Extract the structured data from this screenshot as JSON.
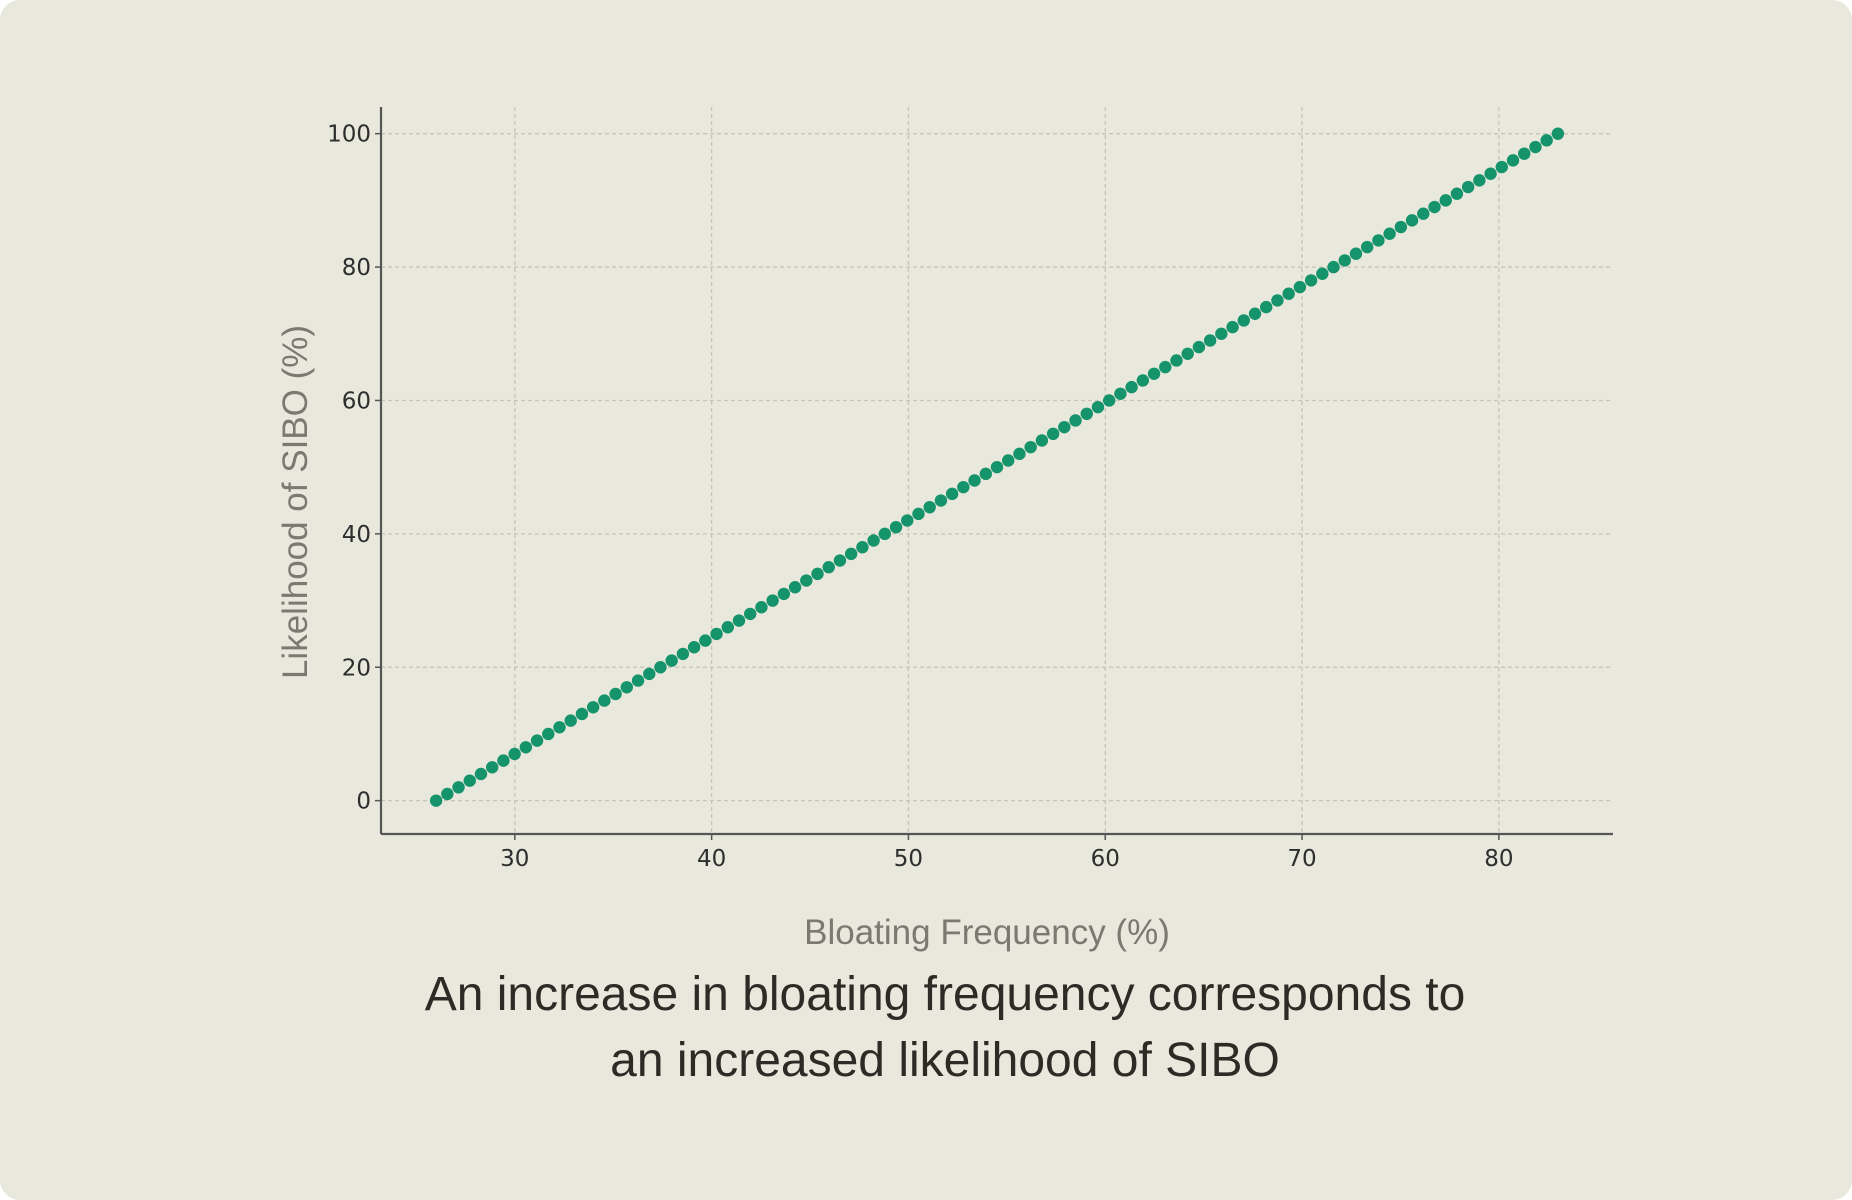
{
  "caption": {
    "line1": "An increase in bloating frequency corresponds to",
    "line2": "an increased likelihood of SIBO"
  },
  "colors": {
    "background": "#e8e8dc",
    "marker": "#15936b",
    "grid": "#c4c4b8",
    "axis": "#555555"
  },
  "chart_data": {
    "type": "scatter",
    "title": "",
    "xlabel": "Bloating Frequency (%)",
    "ylabel": "Likelihood of SIBO (%)",
    "xlim": [
      23.2,
      85.8
    ],
    "ylim": [
      -5,
      104
    ],
    "xticks": [
      30,
      40,
      50,
      60,
      70,
      80
    ],
    "yticks": [
      0,
      20,
      40,
      60,
      80,
      100
    ],
    "xtick_labels": [
      "30",
      "40",
      "50",
      "60",
      "70",
      "80"
    ],
    "ytick_labels": [
      "0",
      "20",
      "40",
      "60",
      "80",
      "100"
    ],
    "grid": true,
    "legend": "none",
    "series": [
      {
        "marker": "circle",
        "color": "#15936b",
        "x": [
          26,
          26.57,
          27.14,
          27.71,
          28.28,
          28.85,
          29.42,
          29.99,
          30.56,
          31.13,
          31.7,
          32.27,
          32.84,
          33.41,
          33.98,
          34.55,
          35.12,
          35.69,
          36.26,
          36.83,
          37.4,
          37.97,
          38.54,
          39.11,
          39.68,
          40.25,
          40.82,
          41.39,
          41.96,
          42.53,
          43.1,
          43.67,
          44.24,
          44.81,
          45.38,
          45.95,
          46.52,
          47.09,
          47.66,
          48.23,
          48.8,
          49.37,
          49.94,
          50.51,
          51.08,
          51.65,
          52.22,
          52.79,
          53.36,
          53.93,
          54.5,
          55.07,
          55.64,
          56.21,
          56.78,
          57.35,
          57.92,
          58.49,
          59.06,
          59.63,
          60.2,
          60.77,
          61.34,
          61.91,
          62.48,
          63.05,
          63.62,
          64.19,
          64.76,
          65.33,
          65.9,
          66.47,
          67.04,
          67.61,
          68.18,
          68.75,
          69.32,
          69.89,
          70.46,
          71.03,
          71.6,
          72.17,
          72.74,
          73.31,
          73.88,
          74.45,
          75.02,
          75.59,
          76.16,
          76.73,
          77.3,
          77.87,
          78.44,
          79.01,
          79.58,
          80.15,
          80.72,
          81.29,
          81.86,
          82.43,
          83
        ],
        "y": [
          0,
          1,
          2,
          3,
          4,
          5,
          6,
          7,
          8,
          9,
          10,
          11,
          12,
          13,
          14,
          15,
          16,
          17,
          18,
          19,
          20,
          21,
          22,
          23,
          24,
          25,
          26,
          27,
          28,
          29,
          30,
          31,
          32,
          33,
          34,
          35,
          36,
          37,
          38,
          39,
          40,
          41,
          42,
          43,
          44,
          45,
          46,
          47,
          48,
          49,
          50,
          51,
          52,
          53,
          54,
          55,
          56,
          57,
          58,
          59,
          60,
          61,
          62,
          63,
          64,
          65,
          66,
          67,
          68,
          69,
          70,
          71,
          72,
          73,
          74,
          75,
          76,
          77,
          78,
          79,
          80,
          81,
          82,
          83,
          84,
          85,
          86,
          87,
          88,
          89,
          90,
          91,
          92,
          93,
          94,
          95,
          96,
          97,
          98,
          99,
          100
        ]
      }
    ]
  }
}
